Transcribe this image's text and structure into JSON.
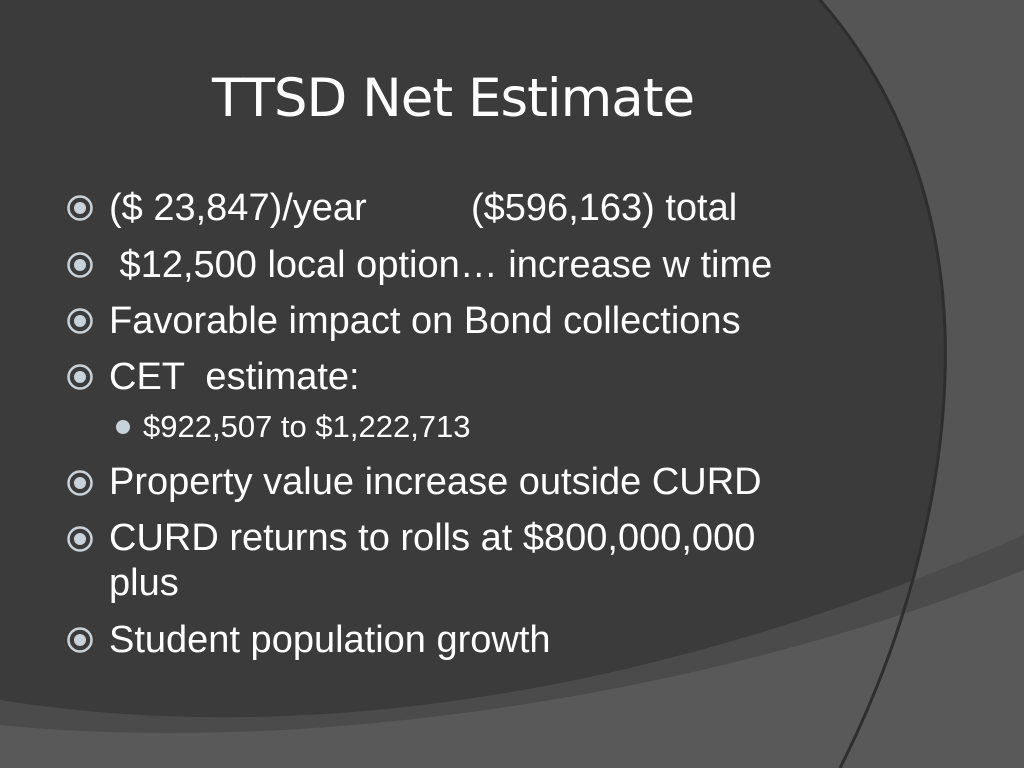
{
  "slide": {
    "title": "TTSD Net Estimate",
    "bullets": [
      {
        "text": "($ 23,847)/year",
        "text2": "($596,163) total"
      },
      {
        "text": " $12,500 local option… increase w time"
      },
      {
        "text": "Favorable impact on Bond collections"
      },
      {
        "text": "CET  estimate:"
      },
      {
        "text": "Property value increase outside CURD"
      },
      {
        "text": "CURD returns to rolls at $800,000,000",
        "text2": "plus"
      },
      {
        "text": "Student population growth"
      }
    ],
    "sub_bullets": [
      {
        "text": "$922,507 to $1,222,713"
      }
    ],
    "icons": {
      "bullet_marker": "target-bullet-icon",
      "sub_bullet_marker": "dot-bullet-icon"
    },
    "colors": {
      "background": "#3b3b3b",
      "text": "#ffffff",
      "marker_ring": "#c8d2da",
      "sub_marker": "#c8d2da"
    }
  }
}
